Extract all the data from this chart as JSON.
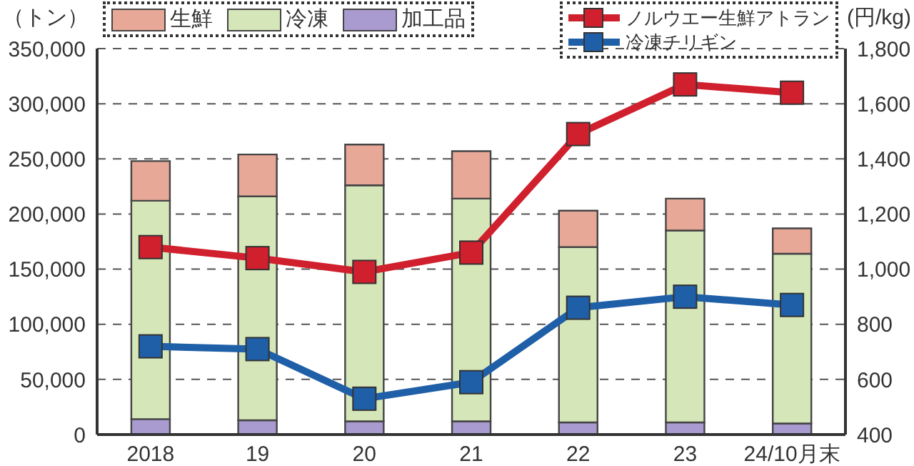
{
  "chart_data": {
    "type": "bar",
    "stacked": true,
    "ylabel": "（トン）",
    "y2label": "(円/kg)",
    "categories": [
      "2018",
      "19",
      "20",
      "21",
      "22",
      "23",
      "24/10月末"
    ],
    "series": [
      {
        "name": "加工品",
        "color": "#a99bd0",
        "values": [
          14000,
          13000,
          12000,
          12000,
          11000,
          11000,
          10000
        ]
      },
      {
        "name": "冷凍",
        "color": "#d5e6b9",
        "values": [
          198000,
          203000,
          214000,
          202000,
          159000,
          174000,
          154000
        ]
      },
      {
        "name": "生鮮",
        "color": "#e8a898",
        "values": [
          36000,
          38000,
          37000,
          43000,
          33000,
          29000,
          23000
        ]
      },
      {
        "name": "ノルウエー生鮮アトラン",
        "type": "line",
        "axis": "y2",
        "color": "#d0202e",
        "values": [
          1080,
          1040,
          990,
          1060,
          1490,
          1670,
          1640
        ]
      },
      {
        "name": "冷凍チリギン",
        "type": "line",
        "axis": "y2",
        "color": "#1f5fa8",
        "values": [
          720,
          710,
          530,
          590,
          860,
          900,
          870
        ]
      }
    ],
    "ylim": [
      0,
      350000
    ],
    "yticks": [
      0,
      {
        "value": 50000,
        "label": "50,000"
      },
      {
        "value": 100000,
        "label": "100,000"
      },
      {
        "value": 150000,
        "label": "150,000"
      },
      {
        "value": 200000,
        "label": "200,000"
      },
      {
        "value": 250000,
        "label": "250,000"
      },
      {
        "value": 300000,
        "label": "300,000"
      },
      {
        "value": 350000,
        "label": "350,000"
      }
    ],
    "y2lim": [
      400,
      1800
    ],
    "y2ticks": [
      400,
      600,
      800,
      {
        "value": 1000,
        "label": "1,000"
      },
      {
        "value": 1200,
        "label": "1,200"
      },
      {
        "value": 1400,
        "label": "1,400"
      },
      {
        "value": 1600,
        "label": "1,600"
      },
      {
        "value": 1800,
        "label": "1,800"
      }
    ],
    "grid": "y",
    "legend": "top",
    "marker": "square",
    "line_style": "solid"
  }
}
